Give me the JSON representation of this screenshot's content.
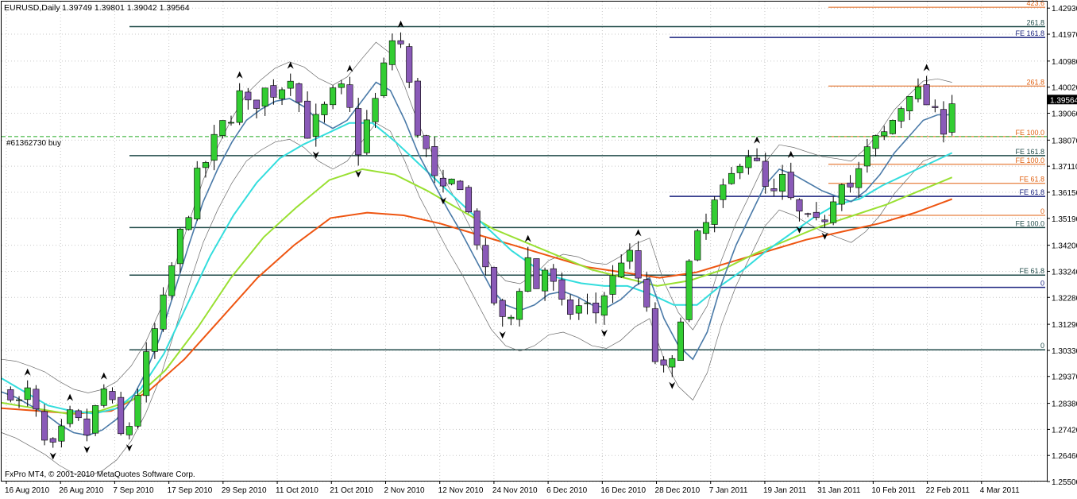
{
  "header": {
    "symbol": "EURUSD,Daily",
    "quote": "1.39749 1.39801 1.39042 1.39564"
  },
  "footer": {
    "copyright": "FxPro MT4, © 2001-2010 MetaQuotes Software Corp."
  },
  "order_label": "#61362730 buy",
  "current_price_label": "1.39564",
  "colors": {
    "bull_candle": "#32cd32",
    "bear_candle": "#8a5ab8",
    "ma_fast": "#4a7aa8",
    "ma_cyan": "#33dddd",
    "ma_green": "#99e032",
    "ma_orange": "#ee5511",
    "envelope": "#555555",
    "fib_dark": "#1f4a48",
    "fib_navy": "#1a237e",
    "fib_orange": "#e06010",
    "order_line": "#22aa22"
  },
  "chart_data": {
    "type": "candlestick",
    "symbol": "EURUSD",
    "timeframe": "Daily",
    "ylim": [
      1.2553,
      1.4317
    ],
    "y_ticks": [
      "1.42930",
      "1.41970",
      "1.40980",
      "1.40020",
      "1.39564",
      "1.39060",
      "1.38070",
      "1.37110",
      "1.36150",
      "1.35190",
      "1.34200",
      "1.33240",
      "1.32280",
      "1.31290",
      "1.30330",
      "1.29370",
      "1.28380",
      "1.27420",
      "1.26460",
      "1.25500"
    ],
    "x_tick_labels": [
      "16 Aug 2010",
      "26 Aug 2010",
      "7 Sep 2010",
      "17 Sep 2010",
      "29 Sep 2010",
      "11 Oct 2010",
      "21 Oct 2010",
      "2 Nov 2010",
      "12 Nov 2010",
      "24 Nov 2010",
      "6 Dec 2010",
      "16 Dec 2010",
      "28 Dec 2010",
      "7 Jan 2011",
      "19 Jan 2011",
      "31 Jan 2011",
      "10 Feb 2011",
      "22 Feb 2011",
      "4 Mar 2011"
    ],
    "close_path": [
      1.288,
      1.283,
      1.29,
      1.272,
      1.265,
      1.272,
      1.279,
      1.276,
      1.271,
      1.29,
      1.287,
      1.271,
      1.276,
      1.29,
      1.305,
      1.315,
      1.33,
      1.345,
      1.355,
      1.37,
      1.374,
      1.386,
      1.387,
      1.398,
      1.393,
      1.395,
      1.401,
      1.396,
      1.408,
      1.396,
      1.383,
      1.389,
      1.394,
      1.401,
      1.396,
      1.376,
      1.388,
      1.397,
      1.413,
      1.422,
      1.405,
      1.385,
      1.376,
      1.363,
      1.36,
      1.37,
      1.356,
      1.345,
      1.33,
      1.319,
      1.311,
      1.32,
      1.34,
      1.326,
      1.334,
      1.325,
      1.316,
      1.319,
      1.32,
      1.317,
      1.325,
      1.331,
      1.341,
      1.334,
      1.321,
      1.3,
      1.295,
      1.299,
      1.328,
      1.343,
      1.348,
      1.357,
      1.362,
      1.369,
      1.377,
      1.375,
      1.363,
      1.36,
      1.367,
      1.355,
      1.352,
      1.349,
      1.351,
      1.36,
      1.368,
      1.362,
      1.374,
      1.38,
      1.382,
      1.388,
      1.394,
      1.401,
      1.396,
      1.392,
      1.384,
      1.3956
    ],
    "moving_averages": [
      {
        "color": "ma_fast",
        "path": [
          1.288,
          1.286,
          1.283,
          1.28,
          1.276,
          1.273,
          1.272,
          1.274,
          1.278,
          1.285,
          1.295,
          1.308,
          1.325,
          1.342,
          1.358,
          1.37,
          1.38,
          1.388,
          1.392,
          1.395,
          1.396,
          1.393,
          1.388,
          1.385,
          1.388,
          1.395,
          1.402,
          1.399,
          1.388,
          1.375,
          1.365,
          1.355,
          1.346,
          1.336,
          1.326,
          1.32,
          1.318,
          1.32,
          1.324,
          1.325,
          1.323,
          1.32,
          1.319,
          1.322,
          1.327,
          1.33,
          1.315,
          1.305,
          1.3,
          1.31,
          1.328,
          1.342,
          1.353,
          1.364,
          1.37,
          1.368,
          1.365,
          1.362,
          1.36,
          1.358,
          1.362,
          1.368,
          1.376,
          1.382,
          1.388,
          1.39,
          1.39
        ]
      },
      {
        "color": "ma_cyan",
        "path": [
          1.293,
          1.288,
          1.283,
          1.281,
          1.28,
          1.282,
          1.289,
          1.302,
          1.32,
          1.338,
          1.353,
          1.365,
          1.374,
          1.379,
          1.383,
          1.387,
          1.387,
          1.38,
          1.372,
          1.364,
          1.356,
          1.348,
          1.34,
          1.334,
          1.33,
          1.328,
          1.327,
          1.327,
          1.324,
          1.32,
          1.32,
          1.327,
          1.333,
          1.34,
          1.346,
          1.352,
          1.357,
          1.359,
          1.364,
          1.368,
          1.372,
          1.376
        ]
      },
      {
        "color": "ma_green",
        "path": [
          1.284,
          1.282,
          1.28,
          1.281,
          1.285,
          1.296,
          1.312,
          1.33,
          1.345,
          1.356,
          1.366,
          1.37,
          1.368,
          1.362,
          1.355,
          1.348,
          1.343,
          1.338,
          1.333,
          1.33,
          1.327,
          1.329,
          1.333,
          1.339,
          1.344,
          1.349,
          1.353,
          1.357,
          1.362,
          1.367
        ]
      },
      {
        "color": "ma_orange",
        "path": [
          1.282,
          1.281,
          1.28,
          1.281,
          1.288,
          1.3,
          1.315,
          1.33,
          1.342,
          1.352,
          1.354,
          1.353,
          1.35,
          1.346,
          1.342,
          1.338,
          1.334,
          1.332,
          1.33,
          1.332,
          1.336,
          1.34,
          1.344,
          1.347,
          1.35,
          1.354,
          1.359
        ]
      }
    ],
    "fib_levels": [
      {
        "label": "423.6",
        "price": 1.4296,
        "color": "fib_orange"
      },
      {
        "label": "261.8",
        "price": 1.4225,
        "color": "fib_dark"
      },
      {
        "label": "FE 161.8",
        "price": 1.4185,
        "color": "fib_navy"
      },
      {
        "label": "261.8",
        "price": 1.4006,
        "color": "fib_orange"
      },
      {
        "label": "FE 100.0",
        "price": 1.382,
        "color": "fib_orange"
      },
      {
        "label": "FE 161.8",
        "price": 1.375,
        "color": "fib_dark"
      },
      {
        "label": "FE 100.0",
        "price": 1.3718,
        "color": "fib_orange"
      },
      {
        "label": "FE 61.8",
        "price": 1.3648,
        "color": "fib_orange"
      },
      {
        "label": "FE 61.8",
        "price": 1.36,
        "color": "fib_navy"
      },
      {
        "label": "0",
        "price": 1.353,
        "color": "fib_orange"
      },
      {
        "label": "FE 100.0",
        "price": 1.3485,
        "color": "fib_dark"
      },
      {
        "label": "FE 61.8",
        "price": 1.331,
        "color": "fib_dark"
      },
      {
        "label": "0",
        "price": 1.3265,
        "color": "fib_navy"
      },
      {
        "label": "0",
        "price": 1.3035,
        "color": "fib_dark"
      }
    ],
    "order_price": 1.382,
    "current_price": 1.39564
  }
}
